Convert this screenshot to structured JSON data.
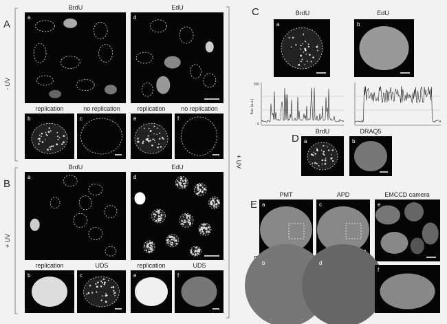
{
  "side_labels": [
    "- UV",
    "+ UV",
    "+ UV"
  ],
  "panel_A": {
    "letter": "A",
    "headers": [
      "BrdU",
      "EdU"
    ],
    "sublabels": [
      "a",
      "b",
      "c",
      "d",
      "e",
      "f"
    ],
    "captions": [
      "replication",
      "no replication",
      "replication",
      "no replication"
    ]
  },
  "panel_B": {
    "letter": "B",
    "headers": [
      "BrdU",
      "EdU"
    ],
    "sublabels": [
      "a",
      "b",
      "c",
      "d",
      "e",
      "f"
    ],
    "captions": [
      "replication",
      "UDS",
      "replication",
      "UDS"
    ]
  },
  "panel_C": {
    "letter": "C",
    "headers": [
      "BrdU",
      "EdU"
    ],
    "sublabels": [
      "a",
      "b"
    ],
    "y_axis_label": "fluo. (a.u.)",
    "y_ticks": [
      150,
      0
    ]
  },
  "panel_D": {
    "letter": "D",
    "headers": [
      "BrdU",
      "DRAQ5"
    ],
    "sublabels": [
      "a",
      "b"
    ]
  },
  "panel_E": {
    "letter": "E",
    "headers": [
      "PMT",
      "APD",
      "EMCCD camera"
    ],
    "sublabels": [
      "a",
      "c",
      "e",
      "b",
      "d",
      "f"
    ],
    "side_label": "EdU"
  }
}
